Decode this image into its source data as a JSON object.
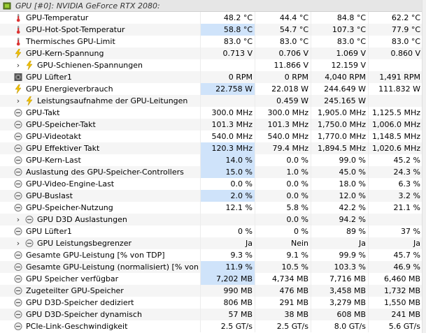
{
  "header": {
    "label": "GPU [#0]: NVIDIA GeForce RTX 2080:"
  },
  "rows": [
    {
      "label": "GPU-Temperatur",
      "icon": "thermometer-icon",
      "v": [
        "48.2 °C",
        "44.4 °C",
        "84.8 °C",
        "62.2 °C"
      ],
      "hl": false
    },
    {
      "label": "GPU-Hot-Spot-Temperatur",
      "icon": "thermometer-icon",
      "v": [
        "58.8 °C",
        "54.7 °C",
        "107.3 °C",
        "77.9 °C"
      ],
      "hl": true
    },
    {
      "label": "Thermisches GPU-Limit",
      "icon": "thermometer-icon",
      "v": [
        "83.0 °C",
        "83.0 °C",
        "83.0 °C",
        "83.0 °C"
      ],
      "hl": false
    },
    {
      "label": "GPU-Kern-Spannung",
      "icon": "lightning-icon",
      "v": [
        "0.713 V",
        "0.706 V",
        "1.069 V",
        "0.860 V"
      ],
      "hl": false
    },
    {
      "label": "GPU-Schienen-Spannungen",
      "icon": "lightning-icon",
      "expander": true,
      "v": [
        "",
        "11.866 V",
        "12.159 V",
        ""
      ],
      "hl": false
    },
    {
      "label": "GPU Lüfter1",
      "icon": "fan-icon",
      "v": [
        "0 RPM",
        "0 RPM",
        "4,040 RPM",
        "1,491 RPM"
      ],
      "hl": false
    },
    {
      "label": "GPU Energieverbrauch",
      "icon": "lightning-icon",
      "v": [
        "22.758 W",
        "22.018 W",
        "244.649 W",
        "111.832 W"
      ],
      "hl": true
    },
    {
      "label": "Leistungsaufnahme der GPU-Leitungen",
      "icon": "lightning-icon",
      "expander": true,
      "v": [
        "",
        "0.459 W",
        "245.165 W",
        ""
      ],
      "hl": false
    },
    {
      "label": "GPU-Takt",
      "icon": "clock-icon",
      "v": [
        "300.0 MHz",
        "300.0 MHz",
        "1,905.0 MHz",
        "1,125.5 MHz"
      ],
      "hl": false
    },
    {
      "label": "GPU-Speicher-Takt",
      "icon": "clock-icon",
      "v": [
        "101.3 MHz",
        "101.3 MHz",
        "1,750.0 MHz",
        "1,006.0 MHz"
      ],
      "hl": false
    },
    {
      "label": "GPU-Videotakt",
      "icon": "clock-icon",
      "v": [
        "540.0 MHz",
        "540.0 MHz",
        "1,770.0 MHz",
        "1,148.5 MHz"
      ],
      "hl": false
    },
    {
      "label": "GPU Effektiver Takt",
      "icon": "clock-icon",
      "v": [
        "120.3 MHz",
        "79.4 MHz",
        "1,894.5 MHz",
        "1,020.6 MHz"
      ],
      "hl": true
    },
    {
      "label": "GPU-Kern-Last",
      "icon": "clock-icon",
      "v": [
        "14.0 %",
        "0.0 %",
        "99.0 %",
        "45.2 %"
      ],
      "hl": true
    },
    {
      "label": "Auslastung des GPU-Speicher-Controllers",
      "icon": "clock-icon",
      "v": [
        "15.0 %",
        "1.0 %",
        "45.0 %",
        "24.3 %"
      ],
      "hl": true
    },
    {
      "label": "GPU-Video-Engine-Last",
      "icon": "clock-icon",
      "v": [
        "0.0 %",
        "0.0 %",
        "18.0 %",
        "6.3 %"
      ],
      "hl": false
    },
    {
      "label": "GPU-Buslast",
      "icon": "clock-icon",
      "v": [
        "2.0 %",
        "0.0 %",
        "12.0 %",
        "3.2 %"
      ],
      "hl": true
    },
    {
      "label": "GPU-Speicher-Nutzung",
      "icon": "clock-icon",
      "v": [
        "12.1 %",
        "5.8 %",
        "42.2 %",
        "21.1 %"
      ],
      "hl": false
    },
    {
      "label": "GPU D3D Auslastungen",
      "icon": "clock-icon",
      "expander": true,
      "v": [
        "",
        "0.0 %",
        "94.2 %",
        ""
      ],
      "hl": false
    },
    {
      "label": "GPU Lüfter1",
      "icon": "clock-icon",
      "v": [
        "0 %",
        "0 %",
        "89 %",
        "37 %"
      ],
      "hl": false
    },
    {
      "label": "GPU Leistungsbegrenzer",
      "icon": "clock-icon",
      "expander": true,
      "v": [
        "Ja",
        "Nein",
        "Ja",
        "Ja"
      ],
      "hl": false
    },
    {
      "label": "Gesamte GPU-Leistung [% von TDP]",
      "icon": "clock-icon",
      "v": [
        "9.3 %",
        "9.1 %",
        "99.9 %",
        "45.7 %"
      ],
      "hl": false
    },
    {
      "label": "Gesamte GPU-Leistung (normalisiert) [% von TDP]",
      "icon": "clock-icon",
      "v": [
        "11.9 %",
        "10.5 %",
        "103.3 %",
        "46.9 %"
      ],
      "hl": true
    },
    {
      "label": "GPU Speicher verfügbar",
      "icon": "clock-icon",
      "v": [
        "7,202 MB",
        "4,734 MB",
        "7,716 MB",
        "6,460 MB"
      ],
      "hl": true
    },
    {
      "label": "Zugeteilter GPU-Speicher",
      "icon": "clock-icon",
      "v": [
        "990 MB",
        "476 MB",
        "3,458 MB",
        "1,732 MB"
      ],
      "hl": false
    },
    {
      "label": "GPU D3D-Speicher dediziert",
      "icon": "clock-icon",
      "v": [
        "806 MB",
        "291 MB",
        "3,279 MB",
        "1,550 MB"
      ],
      "hl": false
    },
    {
      "label": "GPU D3D-Speicher dynamisch",
      "icon": "clock-icon",
      "v": [
        "57 MB",
        "38 MB",
        "608 MB",
        "241 MB"
      ],
      "hl": false
    },
    {
      "label": "PCIe-Link-Geschwindigkeit",
      "icon": "clock-icon",
      "v": [
        "2.5 GT/s",
        "2.5 GT/s",
        "8.0 GT/s",
        "5.6 GT/s"
      ],
      "hl": false
    }
  ]
}
